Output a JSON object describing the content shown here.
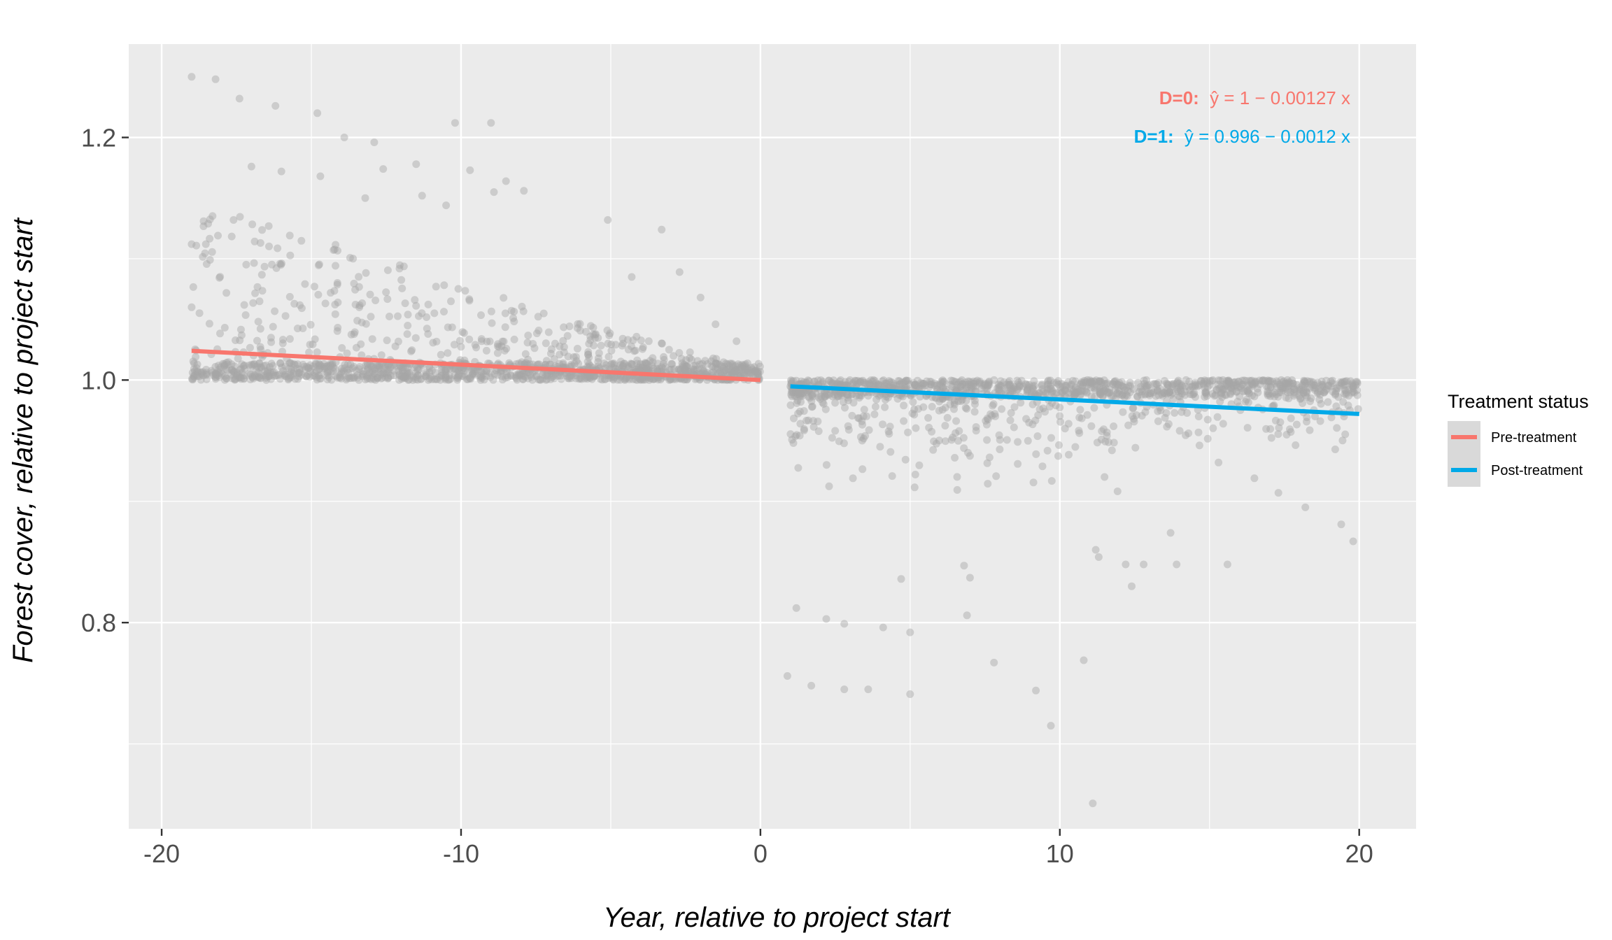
{
  "chart_data": {
    "type": "scatter",
    "title": "",
    "xlabel": "Year, relative to project start",
    "ylabel": "Forest cover, relative to project start",
    "xlim": [
      -21.1,
      21.9
    ],
    "ylim": [
      0.63,
      1.277
    ],
    "x_ticks": [
      -20,
      -10,
      0,
      10,
      20
    ],
    "x_tick_labels": [
      "-20",
      "-10",
      "0",
      "10",
      "20"
    ],
    "y_ticks": [
      0.8,
      1.0,
      1.2
    ],
    "y_tick_labels": [
      "0.8",
      "1.0",
      "1.2"
    ],
    "grid": true,
    "legend": {
      "title": "Treatment status",
      "position": "right",
      "entries": [
        {
          "label": "Pre-treatment",
          "color": "#F8766D"
        },
        {
          "label": "Post-treatment",
          "color": "#00A9E8"
        }
      ]
    },
    "fit_lines": [
      {
        "name": "Pre-treatment",
        "color": "#F8766D",
        "x": [
          -19,
          0
        ],
        "y": [
          1.0241,
          1.0
        ]
      },
      {
        "name": "Post-treatment",
        "color": "#00A9E8",
        "x": [
          1,
          20
        ],
        "y": [
          0.9948,
          0.972
        ]
      }
    ],
    "annotations": [
      {
        "prefix": "D=0:",
        "equation": "ŷ = 1 − 0.00127 x",
        "color": "#F8766D"
      },
      {
        "prefix": "D=1:",
        "equation": "ŷ = 0.996 − 0.0012 x",
        "color": "#00A9E8"
      }
    ],
    "points_color": "#A6A6A6",
    "points_opacity": 0.45,
    "notable_points": [
      [
        -19,
        1.25
      ],
      [
        -18.2,
        1.248
      ],
      [
        -17.4,
        1.232
      ],
      [
        -16.2,
        1.226
      ],
      [
        -14.8,
        1.22
      ],
      [
        -10.2,
        1.212
      ],
      [
        -9,
        1.212
      ],
      [
        -13.9,
        1.2
      ],
      [
        -12.9,
        1.196
      ],
      [
        -17,
        1.176
      ],
      [
        -11.5,
        1.178
      ],
      [
        -9.7,
        1.173
      ],
      [
        -16,
        1.172
      ],
      [
        -8.5,
        1.164
      ],
      [
        -19,
        1.112
      ],
      [
        -19,
        1.06
      ],
      [
        -18.6,
        1.131
      ],
      [
        -17.6,
        1.132
      ],
      [
        -16.7,
        1.113
      ],
      [
        -14.7,
        1.168
      ],
      [
        -13.2,
        1.15
      ],
      [
        -12.6,
        1.174
      ],
      [
        -11.3,
        1.152
      ],
      [
        -10.5,
        1.144
      ],
      [
        -8.9,
        1.155
      ],
      [
        -7.9,
        1.156
      ],
      [
        -5.1,
        1.132
      ],
      [
        -3.3,
        1.124
      ],
      [
        -4.3,
        1.085
      ],
      [
        -2.7,
        1.089
      ],
      [
        -2,
        1.068
      ],
      [
        -1.5,
        1.046
      ],
      [
        -0.8,
        1.032
      ],
      [
        1.1,
        0.948
      ],
      [
        1.2,
        0.812
      ],
      [
        0.9,
        0.756
      ],
      [
        1.7,
        0.748
      ],
      [
        2.2,
        0.803
      ],
      [
        2.8,
        0.799
      ],
      [
        2.8,
        0.745
      ],
      [
        3.6,
        0.745
      ],
      [
        4.1,
        0.796
      ],
      [
        5,
        0.792
      ],
      [
        5,
        0.741
      ],
      [
        4.7,
        0.836
      ],
      [
        6.8,
        0.847
      ],
      [
        7,
        0.837
      ],
      [
        6.9,
        0.806
      ],
      [
        7.8,
        0.767
      ],
      [
        9.2,
        0.744
      ],
      [
        9.7,
        0.715
      ],
      [
        10.8,
        0.769
      ],
      [
        11.1,
        0.651
      ],
      [
        11.2,
        0.86
      ],
      [
        11.3,
        0.854
      ],
      [
        12.2,
        0.848
      ],
      [
        12.4,
        0.83
      ],
      [
        12.8,
        0.848
      ],
      [
        13.7,
        0.874
      ],
      [
        13.9,
        0.848
      ],
      [
        15.3,
        0.932
      ],
      [
        15.6,
        0.848
      ],
      [
        16.5,
        0.919
      ],
      [
        17.3,
        0.907
      ],
      [
        18.2,
        0.895
      ],
      [
        19.4,
        0.881
      ],
      [
        19.8,
        0.867
      ]
    ]
  }
}
